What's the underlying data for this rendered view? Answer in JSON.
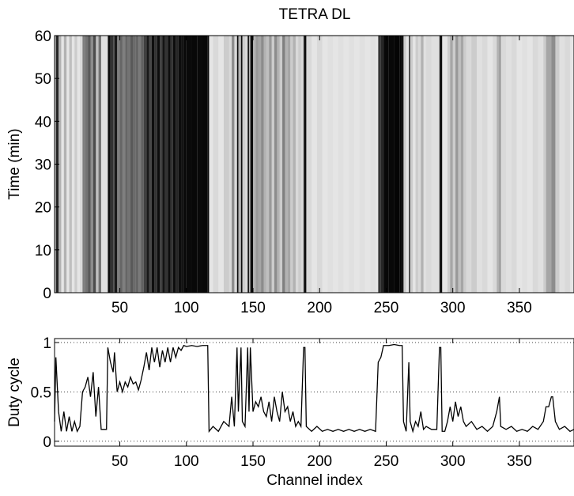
{
  "chart_data": [
    {
      "type": "raster",
      "title": "TETRA DL",
      "ylabel": "Time (min)",
      "xlim": [
        1,
        391
      ],
      "ylim": [
        0,
        60
      ],
      "xticks": [
        50,
        100,
        150,
        200,
        250,
        300,
        350
      ],
      "yticks": [
        0,
        10,
        20,
        30,
        40,
        50,
        60
      ]
    },
    {
      "type": "line",
      "xlabel": "Channel index",
      "ylabel": "Duty cycle",
      "color": "#000000",
      "xlim": [
        1,
        391
      ],
      "ylim": [
        -0.05,
        1.04
      ],
      "xticks": [
        50,
        100,
        150,
        200,
        250,
        300,
        350
      ],
      "yticks": [
        0,
        0.5,
        1
      ],
      "grid": true,
      "x": [
        1,
        2,
        4,
        6,
        8,
        10,
        12,
        14,
        16,
        18,
        20,
        22,
        24,
        26,
        28,
        30,
        32,
        34,
        36,
        38,
        40,
        41,
        43,
        45,
        46,
        48,
        50,
        52,
        54,
        56,
        58,
        60,
        62,
        64,
        66,
        68,
        70,
        72,
        74,
        76,
        78,
        80,
        82,
        84,
        86,
        88,
        90,
        92,
        94,
        96,
        98,
        100,
        104,
        108,
        112,
        116,
        117,
        120,
        124,
        128,
        132,
        134,
        136,
        138,
        139,
        141,
        142,
        144,
        146,
        147,
        148,
        150,
        152,
        154,
        156,
        158,
        160,
        162,
        164,
        166,
        168,
        170,
        172,
        174,
        176,
        178,
        180,
        182,
        184,
        186,
        188,
        189,
        190,
        194,
        198,
        202,
        206,
        210,
        214,
        218,
        222,
        226,
        230,
        234,
        238,
        242,
        244,
        246,
        248,
        252,
        256,
        260,
        262,
        263,
        265,
        267,
        268,
        270,
        272,
        274,
        276,
        278,
        280,
        284,
        288,
        290,
        291,
        292,
        294,
        296,
        298,
        300,
        302,
        304,
        306,
        308,
        310,
        314,
        318,
        322,
        326,
        330,
        333,
        335,
        336,
        340,
        344,
        348,
        352,
        356,
        360,
        364,
        368,
        370,
        372,
        374,
        375,
        377,
        380,
        384,
        388,
        391
      ],
      "values": [
        0.2,
        0.85,
        0.3,
        0.1,
        0.3,
        0.1,
        0.25,
        0.1,
        0.2,
        0.1,
        0.15,
        0.5,
        0.55,
        0.65,
        0.45,
        0.7,
        0.25,
        0.55,
        0.12,
        0.12,
        0.12,
        0.95,
        0.8,
        0.7,
        0.9,
        0.5,
        0.6,
        0.5,
        0.6,
        0.55,
        0.65,
        0.58,
        0.6,
        0.52,
        0.62,
        0.75,
        0.9,
        0.72,
        0.95,
        0.8,
        0.95,
        0.75,
        0.92,
        0.8,
        0.95,
        0.8,
        0.95,
        0.85,
        0.95,
        0.92,
        0.97,
        0.96,
        0.97,
        0.96,
        0.97,
        0.97,
        0.1,
        0.15,
        0.1,
        0.2,
        0.15,
        0.45,
        0.15,
        0.95,
        0.3,
        0.95,
        0.2,
        0.15,
        0.95,
        0.3,
        0.95,
        0.3,
        0.4,
        0.35,
        0.45,
        0.3,
        0.25,
        0.4,
        0.2,
        0.45,
        0.3,
        0.2,
        0.5,
        0.3,
        0.35,
        0.2,
        0.3,
        0.15,
        0.2,
        0.15,
        0.95,
        0.95,
        0.15,
        0.1,
        0.15,
        0.1,
        0.12,
        0.1,
        0.12,
        0.1,
        0.12,
        0.1,
        0.12,
        0.1,
        0.12,
        0.1,
        0.8,
        0.85,
        0.97,
        0.97,
        0.98,
        0.97,
        0.97,
        0.2,
        0.1,
        0.8,
        0.2,
        0.1,
        0.2,
        0.15,
        0.3,
        0.12,
        0.15,
        0.12,
        0.12,
        0.95,
        0.95,
        0.1,
        0.1,
        0.2,
        0.35,
        0.2,
        0.4,
        0.25,
        0.35,
        0.2,
        0.15,
        0.2,
        0.12,
        0.15,
        0.1,
        0.15,
        0.3,
        0.45,
        0.15,
        0.12,
        0.15,
        0.1,
        0.12,
        0.1,
        0.15,
        0.12,
        0.2,
        0.35,
        0.35,
        0.45,
        0.45,
        0.2,
        0.12,
        0.15,
        0.1,
        0.12
      ]
    }
  ]
}
